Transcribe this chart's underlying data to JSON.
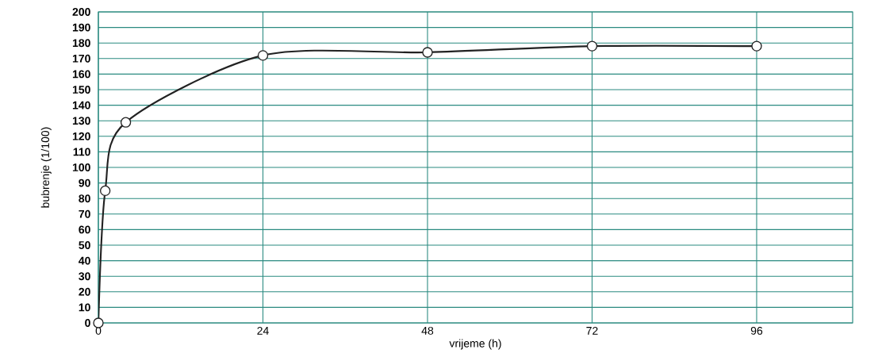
{
  "chart_data": {
    "type": "line",
    "xlabel": "vrijeme (h)",
    "ylabel": "bubrenje (1/100)",
    "x": [
      0,
      1,
      4,
      24,
      48,
      72,
      96
    ],
    "values": [
      0,
      85,
      129,
      172,
      174,
      178,
      178
    ],
    "color": "#222222",
    "marker": "circle",
    "line_style": "solid",
    "grid": true,
    "xlim": [
      0,
      110
    ],
    "xticks": [
      0,
      24,
      48,
      72,
      96
    ],
    "ylim": [
      0,
      200
    ],
    "yticks": [
      0,
      10,
      20,
      30,
      40,
      50,
      60,
      70,
      80,
      90,
      100,
      110,
      120,
      130,
      140,
      150,
      160,
      170,
      180,
      190,
      200
    ]
  }
}
